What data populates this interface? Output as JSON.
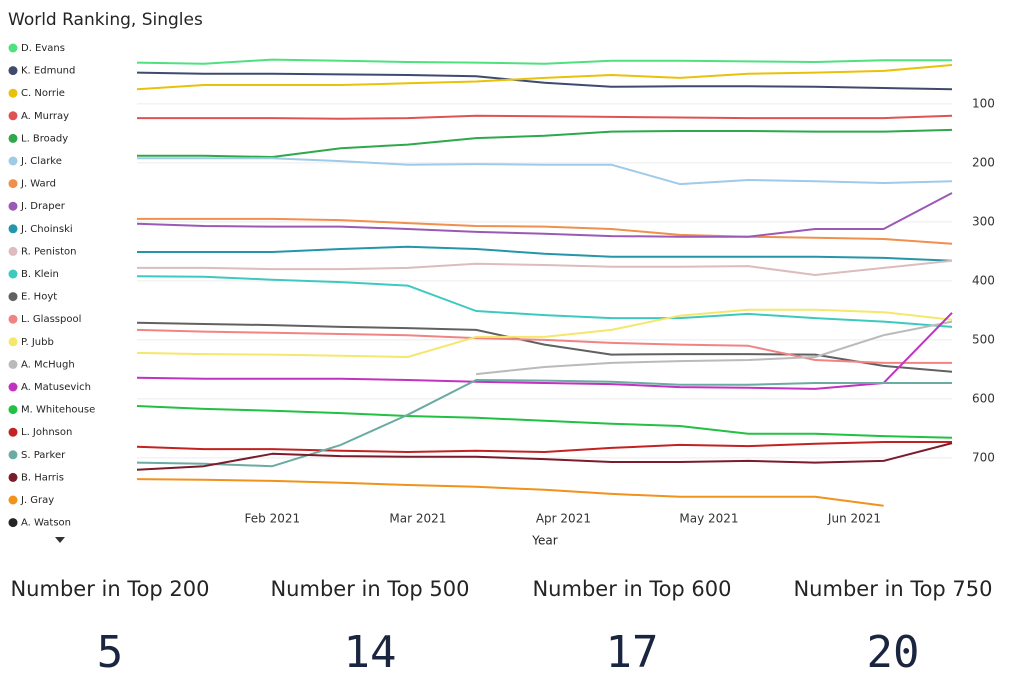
{
  "chart_data": {
    "type": "line",
    "title": "World Ranking, Singles",
    "xlabel": "Year",
    "x": [
      1.07,
      1.53,
      2.0,
      2.47,
      2.93,
      3.4,
      3.87,
      4.33,
      4.8,
      5.27,
      5.73,
      6.2,
      6.67
    ],
    "xlim": [
      1.07,
      6.67
    ],
    "xticks": [
      {
        "value": 2,
        "label": "Feb 2021"
      },
      {
        "value": 3,
        "label": "Mar 2021"
      },
      {
        "value": 4,
        "label": "Apr 2021"
      },
      {
        "value": 5,
        "label": "May 2021"
      },
      {
        "value": 6,
        "label": "Jun 2021"
      }
    ],
    "ylim": [
      -10,
      790
    ],
    "y_reversed": true,
    "yticks": [
      100,
      200,
      300,
      400,
      500,
      600,
      700
    ],
    "grid": true,
    "series": [
      {
        "name": "D. Evans",
        "color": "#4fe07f",
        "values": [
          30,
          32,
          25,
          27,
          29,
          30,
          32,
          27,
          27,
          28,
          29,
          26,
          26
        ]
      },
      {
        "name": "K. Edmund",
        "color": "#3f4b6e",
        "values": [
          47,
          49,
          49,
          50,
          51,
          53,
          64,
          71,
          70,
          70,
          71,
          73,
          75
        ]
      },
      {
        "name": "C. Norrie",
        "color": "#e8c20a",
        "values": [
          75,
          68,
          68,
          68,
          65,
          62,
          56,
          51,
          56,
          49,
          47,
          44,
          34
        ]
      },
      {
        "name": "A. Murray",
        "color": "#e05252",
        "values": [
          124,
          124,
          124,
          125,
          124,
          120,
          121,
          122,
          123,
          124,
          124,
          124,
          120
        ]
      },
      {
        "name": "L. Broady",
        "color": "#2ea84b",
        "values": [
          188,
          188,
          190,
          175,
          169,
          158,
          154,
          147,
          146,
          146,
          147,
          147,
          144
        ]
      },
      {
        "name": "J. Clarke",
        "color": "#9fcbe8",
        "values": [
          192,
          192,
          192,
          197,
          203,
          202,
          203,
          203,
          236,
          229,
          231,
          234,
          231
        ]
      },
      {
        "name": "J. Ward",
        "color": "#f0904c",
        "values": [
          295,
          295,
          295,
          297,
          302,
          307,
          308,
          312,
          322,
          325,
          327,
          329,
          337
        ]
      },
      {
        "name": "J. Draper",
        "color": "#9b59b6",
        "values": [
          303,
          307,
          308,
          308,
          312,
          317,
          320,
          324,
          325,
          325,
          312,
          312,
          251
        ]
      },
      {
        "name": "J. Choinski",
        "color": "#2596aa",
        "values": [
          351,
          351,
          351,
          346,
          342,
          346,
          354,
          359,
          359,
          359,
          359,
          361,
          366
        ]
      },
      {
        "name": "R. Peniston",
        "color": "#dcbcbc",
        "values": [
          378,
          378,
          380,
          380,
          378,
          371,
          373,
          376,
          376,
          375,
          390,
          378,
          366
        ]
      },
      {
        "name": "B. Klein",
        "color": "#3ec9c0",
        "values": [
          392,
          393,
          398,
          402,
          408,
          451,
          458,
          463,
          463,
          456,
          463,
          469,
          478
        ]
      },
      {
        "name": "E. Hoyt",
        "color": "#616161",
        "values": [
          471,
          473,
          475,
          478,
          480,
          483,
          508,
          525,
          524,
          524,
          525,
          544,
          554
        ]
      },
      {
        "name": "L. Glasspool",
        "color": "#f08484",
        "values": [
          483,
          486,
          488,
          490,
          492,
          497,
          500,
          505,
          508,
          510,
          534,
          539,
          539
        ]
      },
      {
        "name": "P. Jubb",
        "color": "#f5e76c",
        "values": [
          522,
          524,
          525,
          527,
          529,
          495,
          495,
          483,
          459,
          449,
          449,
          453,
          466
        ]
      },
      {
        "name": "A. McHugh",
        "color": "#bababa",
        "values": [
          null,
          null,
          null,
          null,
          null,
          558,
          546,
          539,
          536,
          534,
          529,
          492,
          469
        ]
      },
      {
        "name": "A. Matusevich",
        "color": "#c232c2",
        "values": [
          564,
          566,
          566,
          566,
          568,
          571,
          573,
          575,
          580,
          581,
          583,
          573,
          454
        ]
      },
      {
        "name": "M. Whitehouse",
        "color": "#22c043",
        "values": [
          612,
          617,
          620,
          624,
          629,
          632,
          637,
          642,
          646,
          659,
          659,
          663,
          666
        ]
      },
      {
        "name": "L. Johnson",
        "color": "#c22222",
        "values": [
          681,
          685,
          685,
          688,
          690,
          688,
          690,
          683,
          678,
          680,
          676,
          673,
          673
        ]
      },
      {
        "name": "S. Parker",
        "color": "#6aaba2",
        "values": [
          708,
          710,
          714,
          678,
          627,
          568,
          569,
          571,
          576,
          576,
          573,
          573,
          573
        ]
      },
      {
        "name": "B. Harris",
        "color": "#7a1c2c",
        "values": [
          720,
          714,
          693,
          697,
          698,
          698,
          702,
          707,
          707,
          705,
          708,
          705,
          675
        ]
      },
      {
        "name": "J. Gray",
        "color": "#f0921c",
        "values": [
          736,
          737,
          739,
          742,
          746,
          749,
          754,
          761,
          766,
          766,
          766,
          781,
          null
        ]
      },
      {
        "name": "A. Watson",
        "color": "#252525",
        "values": [
          null,
          null,
          null,
          null,
          null,
          null,
          null,
          null,
          null,
          null,
          null,
          null,
          null
        ]
      }
    ]
  },
  "cards": [
    {
      "title": "Number in Top 200",
      "value": 5
    },
    {
      "title": "Number in Top 500",
      "value": 14
    },
    {
      "title": "Number in Top 600",
      "value": 17
    },
    {
      "title": "Number in Top 750",
      "value": 20
    }
  ]
}
